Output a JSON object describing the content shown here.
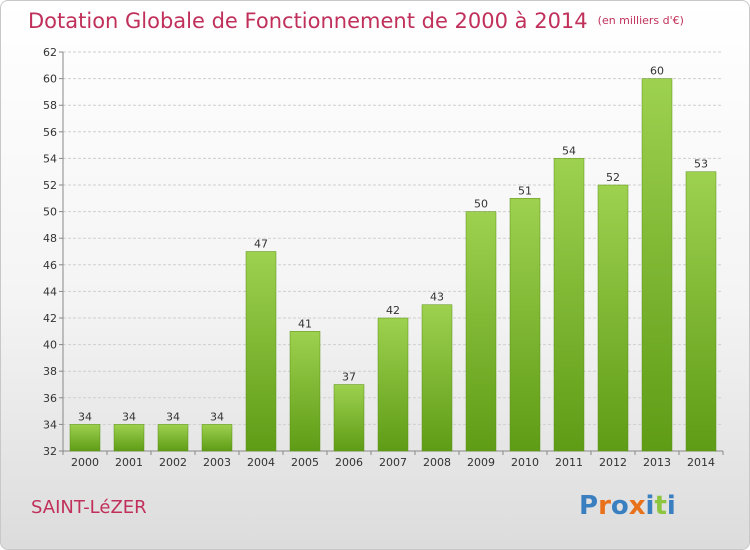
{
  "title": "Dotation Globale de Fonctionnement de 2000 à 2014",
  "unit_note": "(en milliers d'€)",
  "commune": "SAINT-LéZER",
  "logo": {
    "letters": [
      "P",
      "r",
      "o",
      "x",
      "i",
      "t",
      "i"
    ],
    "colors": [
      "#3a7fc0",
      "#e8711a",
      "#3a7fc0",
      "#e8711a",
      "#3a7fc0",
      "#8cc63f",
      "#3a7fc0"
    ]
  },
  "colors": {
    "title": "#c0305a",
    "bar_top": "#9dd14f",
    "bar_bottom": "#5f9c16"
  },
  "chart_data": {
    "type": "bar",
    "title": "Dotation Globale de Fonctionnement de 2000 à 2014",
    "subtitle": "(en milliers d'€)",
    "xlabel": "",
    "ylabel": "",
    "categories": [
      "2000",
      "2001",
      "2002",
      "2003",
      "2004",
      "2005",
      "2006",
      "2007",
      "2008",
      "2009",
      "2010",
      "2011",
      "2012",
      "2013",
      "2014"
    ],
    "values": [
      34,
      34,
      34,
      34,
      47,
      41,
      37,
      42,
      43,
      50,
      51,
      54,
      52,
      60,
      53
    ],
    "ylim": [
      32,
      62
    ],
    "yticks": [
      32,
      34,
      36,
      38,
      40,
      42,
      44,
      46,
      48,
      50,
      52,
      54,
      56,
      58,
      60,
      62
    ],
    "grid": true,
    "legend": "none"
  }
}
